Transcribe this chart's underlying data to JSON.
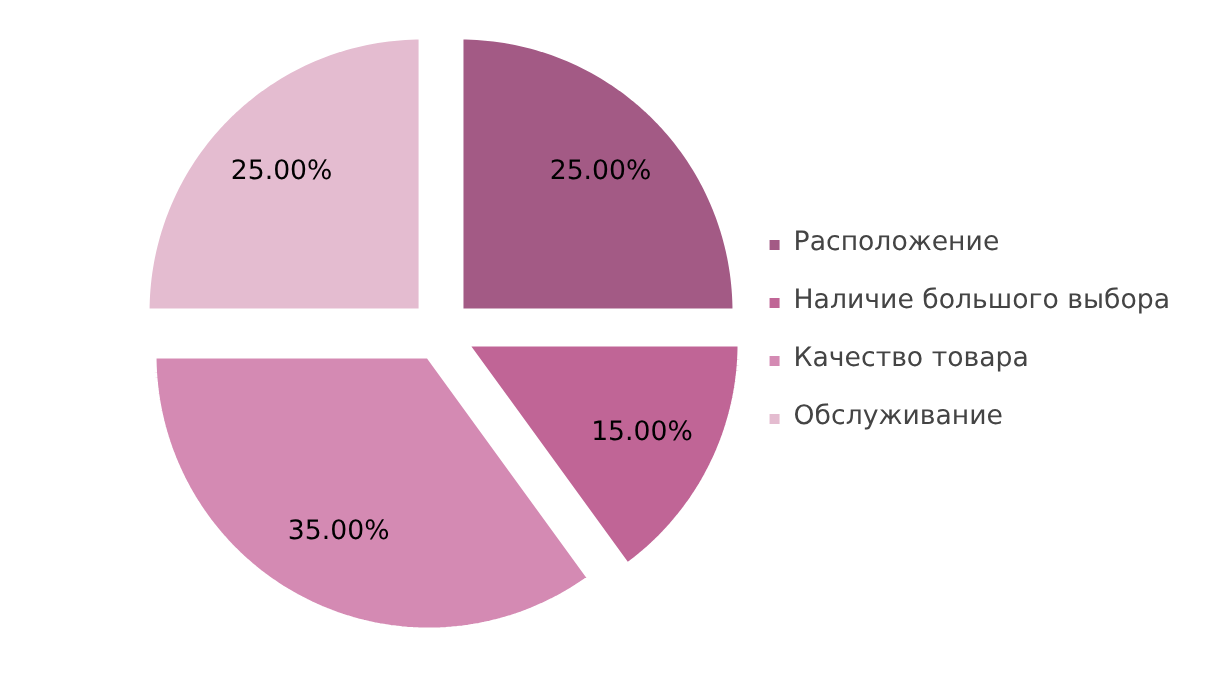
{
  "chart_data": {
    "type": "pie",
    "categories": [
      "Расположение",
      "Наличие большого выбора",
      "Качество товара",
      "Обслуживание"
    ],
    "values": [
      25,
      15,
      35,
      25
    ],
    "colors": [
      "#a35a85",
      "#c06596",
      "#d48ab3",
      "#e4bcd0"
    ],
    "value_labels": [
      "25.00%",
      "15.00%",
      "35.00%",
      "25.00%"
    ],
    "legend": "right"
  }
}
